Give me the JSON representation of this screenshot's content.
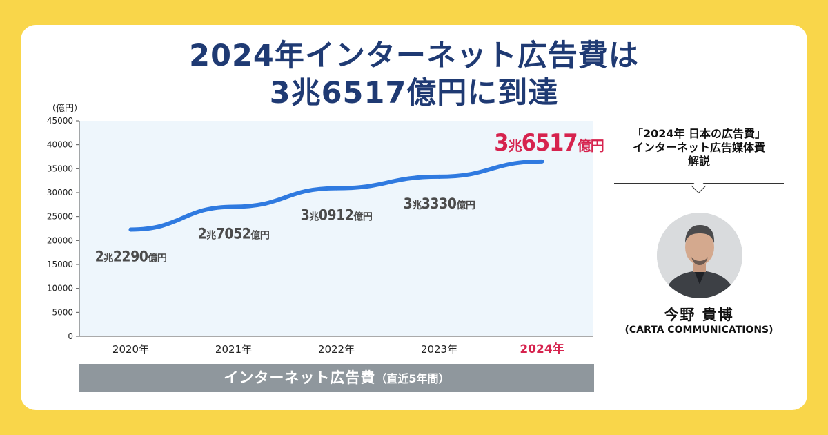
{
  "headline": {
    "line1": "2024年インターネット広告費は",
    "line2": "3兆6517億円に到達"
  },
  "chart_data": {
    "type": "line",
    "unit_label": "（億円）",
    "ylim": [
      0,
      45000
    ],
    "yticks": [
      "45000",
      "40000",
      "35000",
      "30000",
      "25000",
      "20000",
      "15000",
      "10000",
      "5000",
      "0"
    ],
    "ytick_values": [
      45000,
      40000,
      35000,
      30000,
      25000,
      20000,
      15000,
      10000,
      5000,
      0
    ],
    "categories": [
      "2020年",
      "2021年",
      "2022年",
      "2023年",
      "2024年"
    ],
    "values": [
      22290,
      27052,
      30912,
      33330,
      36517
    ],
    "data_labels": [
      {
        "a": "2",
        "b": "兆",
        "c": "2290",
        "d": "億円"
      },
      {
        "a": "2",
        "b": "兆",
        "c": "7052",
        "d": "億円"
      },
      {
        "a": "3",
        "b": "兆",
        "c": "0912",
        "d": "億円"
      },
      {
        "a": "3",
        "b": "兆",
        "c": "3330",
        "d": "億円"
      },
      {
        "a": "3",
        "b": "兆",
        "c": "6517",
        "d": "億円"
      }
    ],
    "grid": false,
    "colors": {
      "line": "#2f7ae0",
      "plot_bg": "#eef6fc",
      "highlight": "#d6234e",
      "label": "#4b4b4b"
    }
  },
  "caption": {
    "main": "インターネット広告費",
    "sub": "（直近5年間）"
  },
  "side_panel": {
    "line1": "「2024年 日本の広告費」",
    "line2": "インターネット広告媒体費",
    "line3": "解説"
  },
  "person": {
    "name": "今野 貴博",
    "org": "(CARTA COMMUNICATIONS)",
    "photo_icon": "portrait-icon"
  }
}
